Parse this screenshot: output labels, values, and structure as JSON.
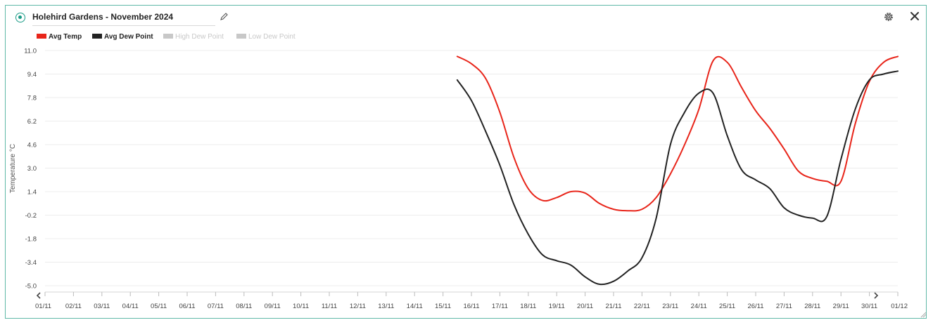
{
  "panel": {
    "title": "Holehird Gardens - November 2024"
  },
  "icons": {
    "radio": "radio-selected-icon",
    "edit": "pencil-icon",
    "settings": "gear-icon",
    "close": "close-icon",
    "prev": "chevron-left-icon",
    "next": "chevron-right-icon"
  },
  "colors": {
    "accent": "#1a9b86",
    "avg_temp": "#e8251a",
    "avg_dew": "#222222",
    "disabled": "#c8c8c8"
  },
  "chart_data": {
    "type": "line",
    "ylabel": "Temperature °C",
    "xlabel": "",
    "ylim": [
      -5.0,
      11.0
    ],
    "y_ticks": [
      "11.0",
      "9.4",
      "7.8",
      "6.2",
      "4.6",
      "3.0",
      "1.4",
      "-0.2",
      "-1.8",
      "-3.4",
      "-5.0"
    ],
    "categories": [
      "01/11",
      "02/11",
      "03/11",
      "04/11",
      "05/11",
      "06/11",
      "07/11",
      "08/11",
      "09/11",
      "10/11",
      "11/11",
      "12/11",
      "13/11",
      "14/11",
      "15/11",
      "16/11",
      "17/11",
      "18/11",
      "19/11",
      "20/11",
      "21/11",
      "22/11",
      "23/11",
      "24/11",
      "25/11",
      "26/11",
      "27/11",
      "28/11",
      "29/11",
      "30/11",
      "01/12"
    ],
    "legend_position": "top-left",
    "grid": true,
    "series": [
      {
        "name": "Avg Temp",
        "color": "#e8251a",
        "enabled": true,
        "points": [
          {
            "x": 14.5,
            "y": 10.6
          },
          {
            "x": 15.0,
            "y": 10.1
          },
          {
            "x": 15.5,
            "y": 9.1
          },
          {
            "x": 16.0,
            "y": 6.8
          },
          {
            "x": 16.5,
            "y": 3.7
          },
          {
            "x": 17.0,
            "y": 1.6
          },
          {
            "x": 17.5,
            "y": 0.8
          },
          {
            "x": 18.0,
            "y": 1.0
          },
          {
            "x": 18.5,
            "y": 1.4
          },
          {
            "x": 19.0,
            "y": 1.3
          },
          {
            "x": 19.5,
            "y": 0.6
          },
          {
            "x": 20.0,
            "y": 0.2
          },
          {
            "x": 20.5,
            "y": 0.1
          },
          {
            "x": 21.0,
            "y": 0.2
          },
          {
            "x": 21.5,
            "y": 1.0
          },
          {
            "x": 22.0,
            "y": 2.6
          },
          {
            "x": 22.5,
            "y": 4.6
          },
          {
            "x": 23.0,
            "y": 7.0
          },
          {
            "x": 23.5,
            "y": 10.3
          },
          {
            "x": 24.0,
            "y": 10.2
          },
          {
            "x": 24.5,
            "y": 8.5
          },
          {
            "x": 25.0,
            "y": 6.9
          },
          {
            "x": 25.5,
            "y": 5.7
          },
          {
            "x": 26.0,
            "y": 4.3
          },
          {
            "x": 26.5,
            "y": 2.8
          },
          {
            "x": 27.0,
            "y": 2.3
          },
          {
            "x": 27.5,
            "y": 2.1
          },
          {
            "x": 28.0,
            "y": 2.1
          },
          {
            "x": 28.5,
            "y": 6.0
          },
          {
            "x": 29.0,
            "y": 8.9
          },
          {
            "x": 29.5,
            "y": 10.2
          },
          {
            "x": 30.0,
            "y": 10.6
          }
        ]
      },
      {
        "name": "Avg Dew Point",
        "color": "#222222",
        "enabled": true,
        "points": [
          {
            "x": 14.5,
            "y": 9.0
          },
          {
            "x": 15.0,
            "y": 7.6
          },
          {
            "x": 15.5,
            "y": 5.5
          },
          {
            "x": 16.0,
            "y": 3.2
          },
          {
            "x": 16.5,
            "y": 0.5
          },
          {
            "x": 17.0,
            "y": -1.5
          },
          {
            "x": 17.5,
            "y": -2.9
          },
          {
            "x": 18.0,
            "y": -3.3
          },
          {
            "x": 18.5,
            "y": -3.6
          },
          {
            "x": 19.0,
            "y": -4.4
          },
          {
            "x": 19.5,
            "y": -4.9
          },
          {
            "x": 20.0,
            "y": -4.7
          },
          {
            "x": 20.5,
            "y": -4.0
          },
          {
            "x": 21.0,
            "y": -3.1
          },
          {
            "x": 21.5,
            "y": -0.4
          },
          {
            "x": 22.0,
            "y": 4.6
          },
          {
            "x": 22.5,
            "y": 6.8
          },
          {
            "x": 23.0,
            "y": 8.1
          },
          {
            "x": 23.5,
            "y": 8.1
          },
          {
            "x": 24.0,
            "y": 5.2
          },
          {
            "x": 24.5,
            "y": 2.9
          },
          {
            "x": 25.0,
            "y": 2.2
          },
          {
            "x": 25.5,
            "y": 1.6
          },
          {
            "x": 26.0,
            "y": 0.3
          },
          {
            "x": 26.5,
            "y": -0.2
          },
          {
            "x": 27.0,
            "y": -0.4
          },
          {
            "x": 27.5,
            "y": -0.3
          },
          {
            "x": 28.0,
            "y": 3.6
          },
          {
            "x": 28.5,
            "y": 7.0
          },
          {
            "x": 29.0,
            "y": 9.0
          },
          {
            "x": 29.5,
            "y": 9.4
          },
          {
            "x": 30.0,
            "y": 9.6
          }
        ]
      },
      {
        "name": "High Dew Point",
        "color": "#c8c8c8",
        "enabled": false,
        "points": []
      },
      {
        "name": "Low Dew Point",
        "color": "#c8c8c8",
        "enabled": false,
        "points": []
      }
    ]
  }
}
